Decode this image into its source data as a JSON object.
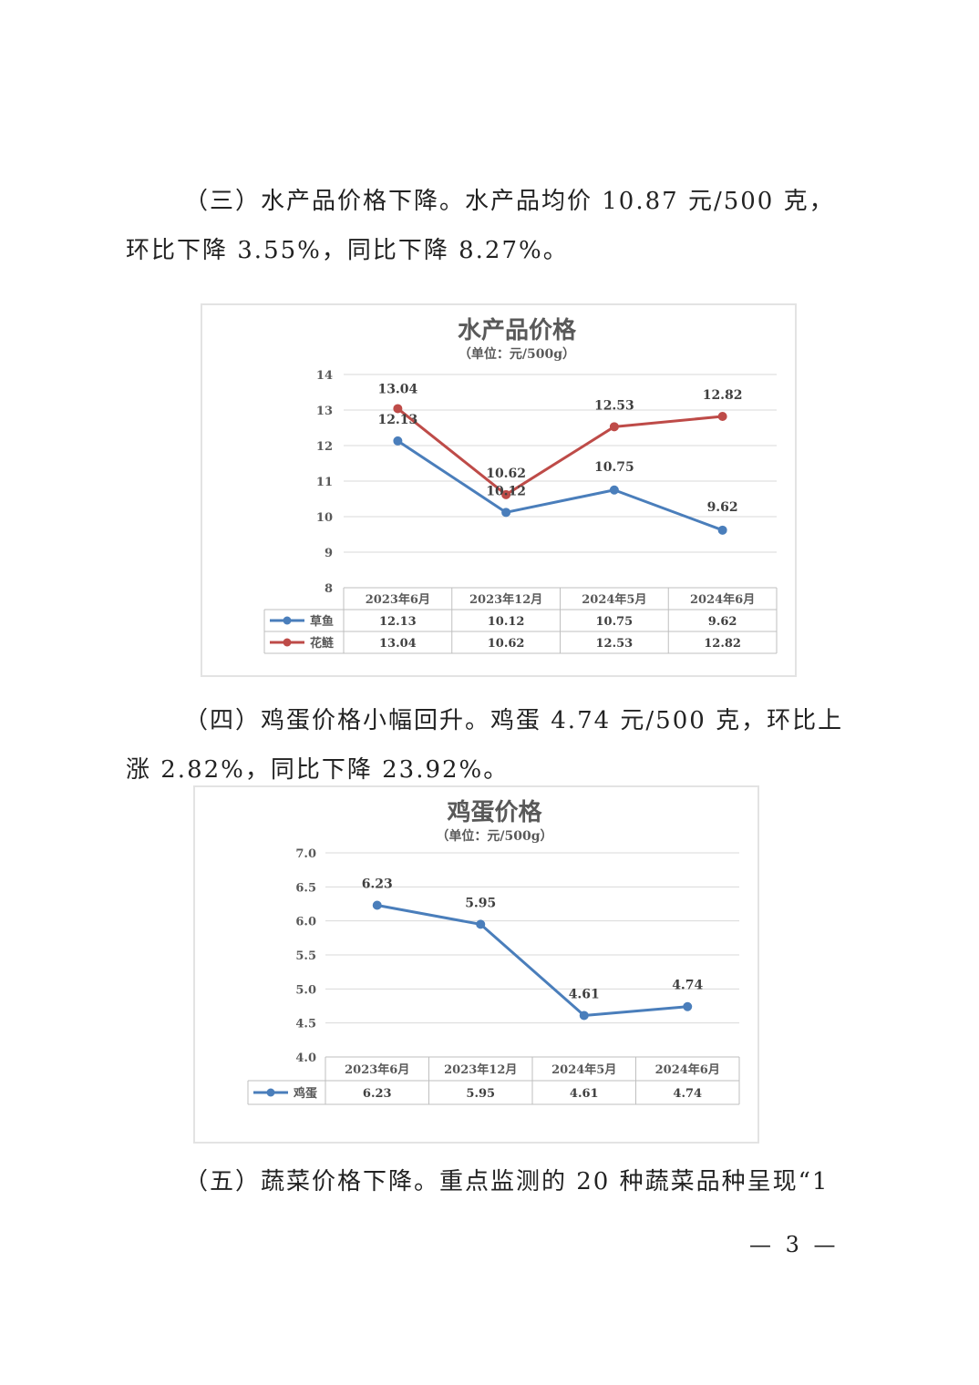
{
  "paragraphs": [
    "（三）水产品价格下降。水产品均价 10.87 元/500 克，环比下降 3.55%，同比下降 8.27%。",
    "（四）鸡蛋价格小幅回升。鸡蛋 4.74 元/500 克，环比上涨 2.82%，同比下降 23.92%。",
    "（五）蔬菜价格下降。重点监测的 20 种蔬菜品种呈现“1"
  ],
  "page_number": "— 3 —",
  "chart_data": [
    {
      "type": "line",
      "title": "水产品价格",
      "subtitle": "（单位：元/500g）",
      "categories": [
        "2023年6月",
        "2023年12月",
        "2024年5月",
        "2024年6月"
      ],
      "ylim": [
        8,
        14
      ],
      "yticks": [
        "8",
        "9",
        "10",
        "11",
        "12",
        "13",
        "14"
      ],
      "grid": true,
      "legend": "data-table",
      "series": [
        {
          "name": "草鱼",
          "color": "#4a7ebb",
          "values": [
            12.13,
            10.12,
            10.75,
            9.62
          ],
          "labels": [
            "12.13",
            "10.12",
            "10.75",
            "9.62"
          ]
        },
        {
          "name": "花鲢",
          "color": "#be4b48",
          "values": [
            13.04,
            10.62,
            12.53,
            12.82
          ],
          "labels": [
            "13.04",
            "10.62",
            "12.53",
            "12.82"
          ]
        }
      ]
    },
    {
      "type": "line",
      "title": "鸡蛋价格",
      "subtitle": "（单位：元/500g）",
      "categories": [
        "2023年6月",
        "2023年12月",
        "2024年5月",
        "2024年6月"
      ],
      "ylim": [
        4.0,
        7.0
      ],
      "yticks": [
        "4.0",
        "4.5",
        "5.0",
        "5.5",
        "6.0",
        "6.5",
        "7.0"
      ],
      "grid": true,
      "legend": "data-table",
      "series": [
        {
          "name": "鸡蛋",
          "color": "#4a7ebb",
          "values": [
            6.23,
            5.95,
            4.61,
            4.74
          ],
          "labels": [
            "6.23",
            "5.95",
            "4.61",
            "4.74"
          ]
        }
      ]
    }
  ]
}
